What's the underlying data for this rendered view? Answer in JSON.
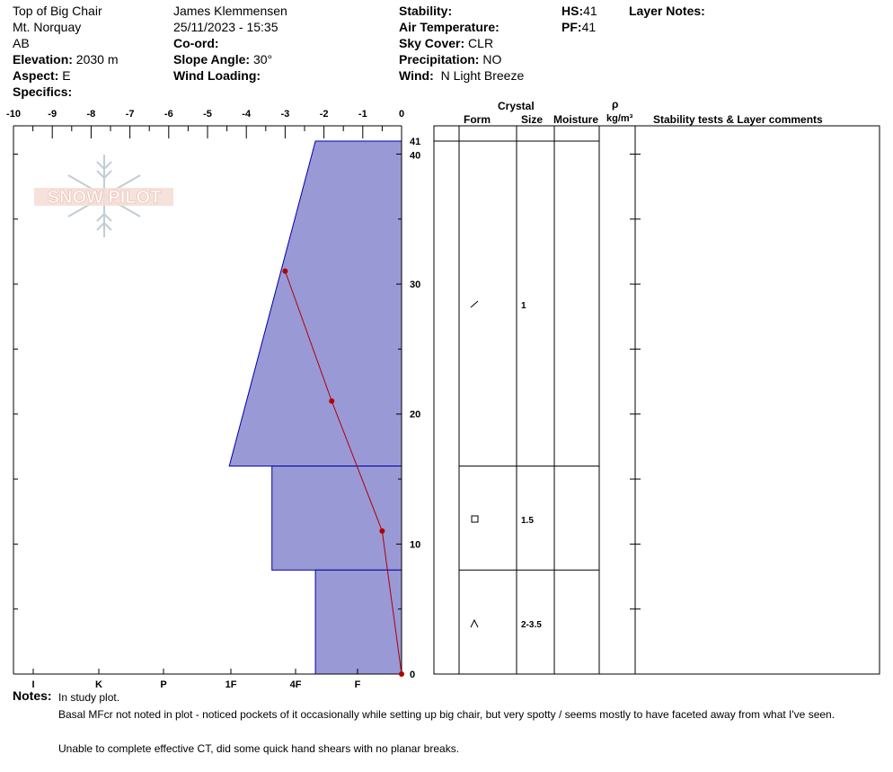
{
  "header": {
    "location": "Top of Big Chair",
    "area": "Mt. Norquay",
    "region": "AB",
    "elevation_label": "Elevation:",
    "elevation_value": "2030 m",
    "aspect_label": "Aspect:",
    "aspect_value": "E",
    "specifics_label": "Specifics:",
    "observer": "James Klemmensen",
    "datetime": "25/11/2023 - 15:35",
    "coord_label": "Co-ord:",
    "slope_label": "Slope Angle:",
    "slope_value": "30°",
    "wind_loading_label": "Wind Loading:",
    "stability_label": "Stability:",
    "air_temp_label": "Air Temperature:",
    "sky_label": "Sky Cover:",
    "sky_value": "CLR",
    "precip_label": "Precipitation:",
    "precip_value": "NO",
    "wind_label": "Wind:",
    "wind_value": "N Light Breeze",
    "hs_label": "HS:",
    "hs_value": "41",
    "pf_label": "PF:",
    "pf_value": "41",
    "layer_notes_label": "Layer Notes:"
  },
  "logo": {
    "text": "SNOW PILOT"
  },
  "table_headers": {
    "crystal": "Crystal",
    "form": "Form",
    "size": "Size",
    "moisture": "Moisture",
    "rho": "ρ",
    "density_unit": "kg/m³",
    "comments": "Stability tests & Layer comments"
  },
  "layers": [
    {
      "top": 41,
      "bottom": 16,
      "form_icon": "slash-icon",
      "size": "1"
    },
    {
      "top": 16,
      "bottom": 8,
      "form_icon": "square-icon",
      "size": "1.5"
    },
    {
      "top": 8,
      "bottom": 0,
      "form_icon": "caret-icon",
      "size": "2-3.5"
    }
  ],
  "notes": {
    "label": "Notes:",
    "line1": "In study plot.",
    "line2": "Basal MFcr not noted in plot - noticed pockets of it occasionally while setting up big chair, but very spotty / seems mostly to have faceted away from what I've seen.",
    "line3": "Unable to complete effective CT, did some quick hand shears with no planar breaks."
  },
  "chart_data": {
    "type": "area",
    "temperature_axis": {
      "ticks": [
        "-10",
        "-9",
        "-8",
        "-7",
        "-6",
        "-5",
        "-4",
        "-3",
        "-2",
        "-1",
        "0"
      ],
      "range": [
        -10,
        0
      ]
    },
    "height_axis": {
      "ticks": [
        "0",
        "10",
        "20",
        "30",
        "40",
        "41"
      ],
      "range": [
        0,
        41
      ],
      "unit": "cm"
    },
    "hardness_axis": {
      "labels": [
        "I",
        "K",
        "P",
        "1F",
        "4F",
        "F"
      ]
    },
    "hardness_profile": [
      {
        "top": 41,
        "bottom": 16,
        "hardness_ratio_top": 0.111,
        "hardness_ratio_bottom": 0.222
      },
      {
        "top": 16,
        "bottom": 8,
        "hardness_ratio": 0.167
      },
      {
        "top": 8,
        "bottom": 0,
        "hardness_ratio": 0.111
      }
    ],
    "temperature_profile": [
      {
        "height": 31,
        "temp": -3.0
      },
      {
        "height": 21,
        "temp": -1.8
      },
      {
        "height": 11,
        "temp": -0.5
      },
      {
        "height": 0,
        "temp": 0.0
      }
    ],
    "colors": {
      "hardness_fill": "#9999d6",
      "hardness_stroke": "#0000aa",
      "temp_line": "#b00000"
    }
  }
}
